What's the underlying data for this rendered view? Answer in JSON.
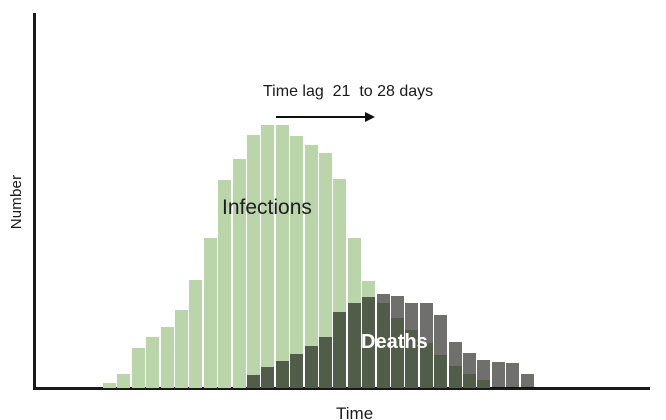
{
  "axis": {
    "y_label": "Number",
    "x_label": "Time"
  },
  "annotation": {
    "label": "Time lag  21  to 28 days",
    "arrow_direction": "right"
  },
  "series_labels": {
    "infections": "Infections",
    "deaths": "Deaths"
  },
  "colors": {
    "infections_fill": "#b9d5a9",
    "deaths_fill": "#6f6f6d",
    "overlap_rendered": "#57674c",
    "axis": "#1a1a1a",
    "annotation_text": "#1a1a1a",
    "deaths_label_text": "#ffffff",
    "background": "#ffffff"
  },
  "chart_data": {
    "type": "bar",
    "subtype": "overlapping-histograms",
    "title": "",
    "xlabel": "Time",
    "ylabel": "Number",
    "grid": false,
    "numeric_tick_labels": false,
    "value_units": "relative height (no numeric scale shown)",
    "bin_count_total": 30,
    "annotations": [
      {
        "text": "Time lag  21  to 28 days",
        "arrow": "rightward horizontal arrow under text"
      }
    ],
    "series": [
      {
        "name": "Infections",
        "color": "#b9d5a9",
        "label_position": "inside-upper-left-of-peak",
        "bin_start_index": 0,
        "values": [
          5,
          14,
          40,
          51,
          61,
          78,
          108,
          150,
          208,
          229,
          253,
          263,
          263,
          252,
          243,
          235,
          209,
          150,
          107,
          85,
          70,
          58,
          45,
          33,
          22,
          14,
          8
        ]
      },
      {
        "name": "Deaths",
        "color": "#6f6f6d",
        "blend": "multiply-over-infections",
        "label_position": "inside-left-of-peak",
        "bin_start_index": 10,
        "values": [
          13,
          21,
          27,
          34,
          42,
          51,
          76,
          85,
          91,
          94,
          92,
          85,
          85,
          73,
          46,
          35,
          28,
          26,
          25,
          14
        ]
      }
    ],
    "legend": "none (labels drawn on bars)"
  }
}
